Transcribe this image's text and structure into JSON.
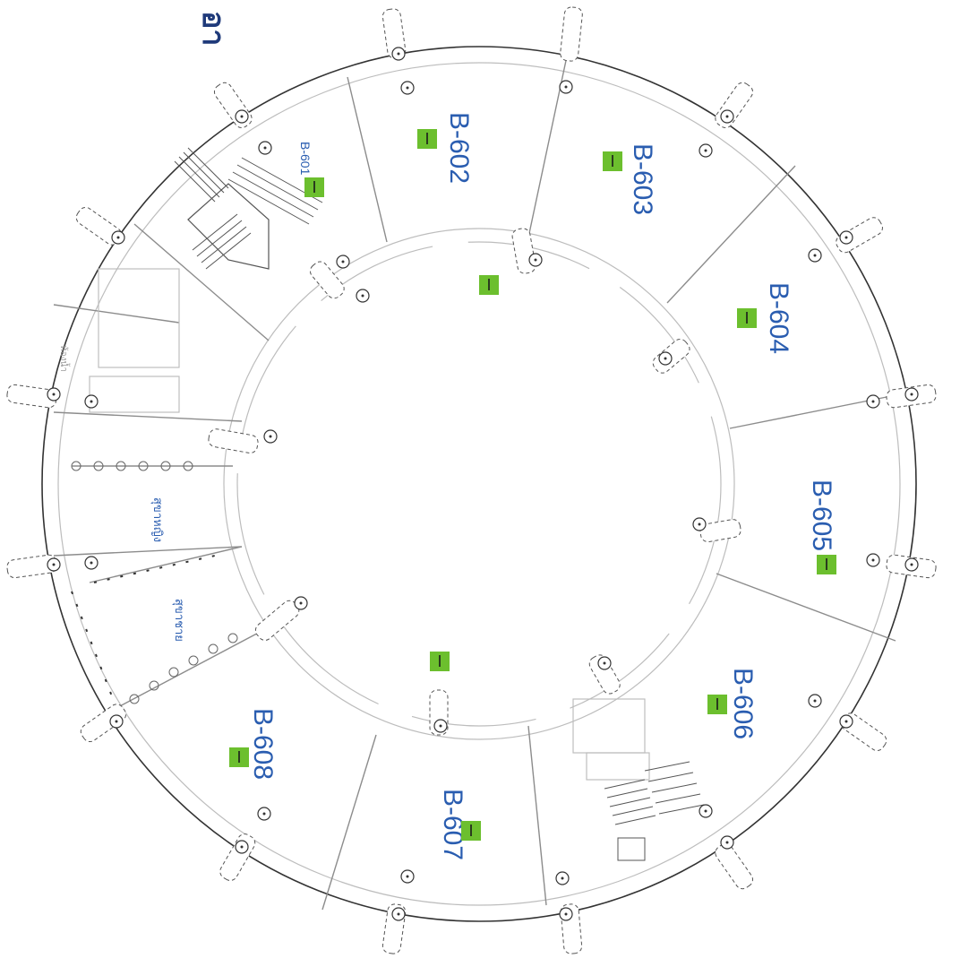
{
  "title_fragment": "อา",
  "rooms": [
    {
      "id": "B-601"
    },
    {
      "id": "B-602"
    },
    {
      "id": "B-603"
    },
    {
      "id": "B-604"
    },
    {
      "id": "B-605"
    },
    {
      "id": "B-606"
    },
    {
      "id": "B-607"
    },
    {
      "id": "B-608"
    }
  ],
  "toilets": {
    "female": "สุขาหญิง",
    "male": "สุขาชาย",
    "small_label": "ห้องน้ำ"
  },
  "colors": {
    "room_label": "#2a5db0",
    "marker": "#6cbf2e",
    "title": "#1f3a7a"
  },
  "icons": [
    "fire-extinguisher-icon",
    "column-icon",
    "stair-icon"
  ]
}
